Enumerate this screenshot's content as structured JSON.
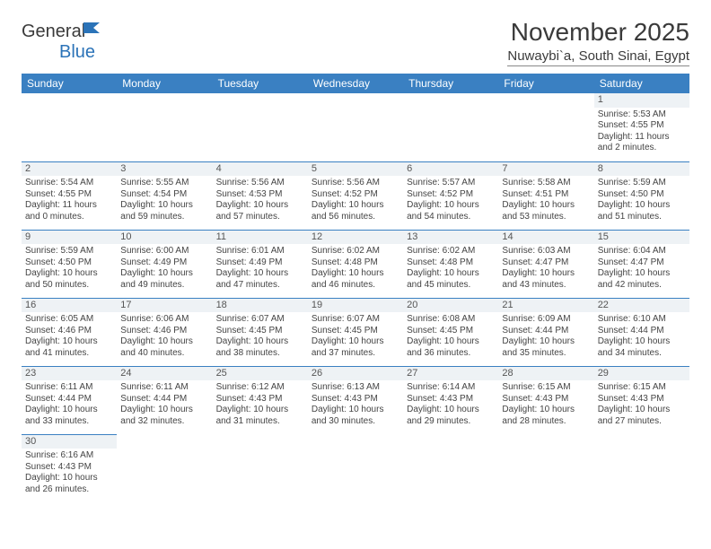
{
  "logo": {
    "part1": "General",
    "part2": "Blue"
  },
  "title": "November 2025",
  "location": "Nuwaybi`a, South Sinai, Egypt",
  "header_bg": "#3a80c2",
  "header_fg": "#ffffff",
  "daynum_bg": "#eef2f5",
  "columns": [
    "Sunday",
    "Monday",
    "Tuesday",
    "Wednesday",
    "Thursday",
    "Friday",
    "Saturday"
  ],
  "weeks": [
    [
      null,
      null,
      null,
      null,
      null,
      null,
      {
        "n": "1",
        "sr": "Sunrise: 5:53 AM",
        "ss": "Sunset: 4:55 PM",
        "d1": "Daylight: 11 hours",
        "d2": "and 2 minutes."
      }
    ],
    [
      {
        "n": "2",
        "sr": "Sunrise: 5:54 AM",
        "ss": "Sunset: 4:55 PM",
        "d1": "Daylight: 11 hours",
        "d2": "and 0 minutes."
      },
      {
        "n": "3",
        "sr": "Sunrise: 5:55 AM",
        "ss": "Sunset: 4:54 PM",
        "d1": "Daylight: 10 hours",
        "d2": "and 59 minutes."
      },
      {
        "n": "4",
        "sr": "Sunrise: 5:56 AM",
        "ss": "Sunset: 4:53 PM",
        "d1": "Daylight: 10 hours",
        "d2": "and 57 minutes."
      },
      {
        "n": "5",
        "sr": "Sunrise: 5:56 AM",
        "ss": "Sunset: 4:52 PM",
        "d1": "Daylight: 10 hours",
        "d2": "and 56 minutes."
      },
      {
        "n": "6",
        "sr": "Sunrise: 5:57 AM",
        "ss": "Sunset: 4:52 PM",
        "d1": "Daylight: 10 hours",
        "d2": "and 54 minutes."
      },
      {
        "n": "7",
        "sr": "Sunrise: 5:58 AM",
        "ss": "Sunset: 4:51 PM",
        "d1": "Daylight: 10 hours",
        "d2": "and 53 minutes."
      },
      {
        "n": "8",
        "sr": "Sunrise: 5:59 AM",
        "ss": "Sunset: 4:50 PM",
        "d1": "Daylight: 10 hours",
        "d2": "and 51 minutes."
      }
    ],
    [
      {
        "n": "9",
        "sr": "Sunrise: 5:59 AM",
        "ss": "Sunset: 4:50 PM",
        "d1": "Daylight: 10 hours",
        "d2": "and 50 minutes."
      },
      {
        "n": "10",
        "sr": "Sunrise: 6:00 AM",
        "ss": "Sunset: 4:49 PM",
        "d1": "Daylight: 10 hours",
        "d2": "and 49 minutes."
      },
      {
        "n": "11",
        "sr": "Sunrise: 6:01 AM",
        "ss": "Sunset: 4:49 PM",
        "d1": "Daylight: 10 hours",
        "d2": "and 47 minutes."
      },
      {
        "n": "12",
        "sr": "Sunrise: 6:02 AM",
        "ss": "Sunset: 4:48 PM",
        "d1": "Daylight: 10 hours",
        "d2": "and 46 minutes."
      },
      {
        "n": "13",
        "sr": "Sunrise: 6:02 AM",
        "ss": "Sunset: 4:48 PM",
        "d1": "Daylight: 10 hours",
        "d2": "and 45 minutes."
      },
      {
        "n": "14",
        "sr": "Sunrise: 6:03 AM",
        "ss": "Sunset: 4:47 PM",
        "d1": "Daylight: 10 hours",
        "d2": "and 43 minutes."
      },
      {
        "n": "15",
        "sr": "Sunrise: 6:04 AM",
        "ss": "Sunset: 4:47 PM",
        "d1": "Daylight: 10 hours",
        "d2": "and 42 minutes."
      }
    ],
    [
      {
        "n": "16",
        "sr": "Sunrise: 6:05 AM",
        "ss": "Sunset: 4:46 PM",
        "d1": "Daylight: 10 hours",
        "d2": "and 41 minutes."
      },
      {
        "n": "17",
        "sr": "Sunrise: 6:06 AM",
        "ss": "Sunset: 4:46 PM",
        "d1": "Daylight: 10 hours",
        "d2": "and 40 minutes."
      },
      {
        "n": "18",
        "sr": "Sunrise: 6:07 AM",
        "ss": "Sunset: 4:45 PM",
        "d1": "Daylight: 10 hours",
        "d2": "and 38 minutes."
      },
      {
        "n": "19",
        "sr": "Sunrise: 6:07 AM",
        "ss": "Sunset: 4:45 PM",
        "d1": "Daylight: 10 hours",
        "d2": "and 37 minutes."
      },
      {
        "n": "20",
        "sr": "Sunrise: 6:08 AM",
        "ss": "Sunset: 4:45 PM",
        "d1": "Daylight: 10 hours",
        "d2": "and 36 minutes."
      },
      {
        "n": "21",
        "sr": "Sunrise: 6:09 AM",
        "ss": "Sunset: 4:44 PM",
        "d1": "Daylight: 10 hours",
        "d2": "and 35 minutes."
      },
      {
        "n": "22",
        "sr": "Sunrise: 6:10 AM",
        "ss": "Sunset: 4:44 PM",
        "d1": "Daylight: 10 hours",
        "d2": "and 34 minutes."
      }
    ],
    [
      {
        "n": "23",
        "sr": "Sunrise: 6:11 AM",
        "ss": "Sunset: 4:44 PM",
        "d1": "Daylight: 10 hours",
        "d2": "and 33 minutes."
      },
      {
        "n": "24",
        "sr": "Sunrise: 6:11 AM",
        "ss": "Sunset: 4:44 PM",
        "d1": "Daylight: 10 hours",
        "d2": "and 32 minutes."
      },
      {
        "n": "25",
        "sr": "Sunrise: 6:12 AM",
        "ss": "Sunset: 4:43 PM",
        "d1": "Daylight: 10 hours",
        "d2": "and 31 minutes."
      },
      {
        "n": "26",
        "sr": "Sunrise: 6:13 AM",
        "ss": "Sunset: 4:43 PM",
        "d1": "Daylight: 10 hours",
        "d2": "and 30 minutes."
      },
      {
        "n": "27",
        "sr": "Sunrise: 6:14 AM",
        "ss": "Sunset: 4:43 PM",
        "d1": "Daylight: 10 hours",
        "d2": "and 29 minutes."
      },
      {
        "n": "28",
        "sr": "Sunrise: 6:15 AM",
        "ss": "Sunset: 4:43 PM",
        "d1": "Daylight: 10 hours",
        "d2": "and 28 minutes."
      },
      {
        "n": "29",
        "sr": "Sunrise: 6:15 AM",
        "ss": "Sunset: 4:43 PM",
        "d1": "Daylight: 10 hours",
        "d2": "and 27 minutes."
      }
    ],
    [
      {
        "n": "30",
        "sr": "Sunrise: 6:16 AM",
        "ss": "Sunset: 4:43 PM",
        "d1": "Daylight: 10 hours",
        "d2": "and 26 minutes."
      },
      null,
      null,
      null,
      null,
      null,
      null
    ]
  ]
}
